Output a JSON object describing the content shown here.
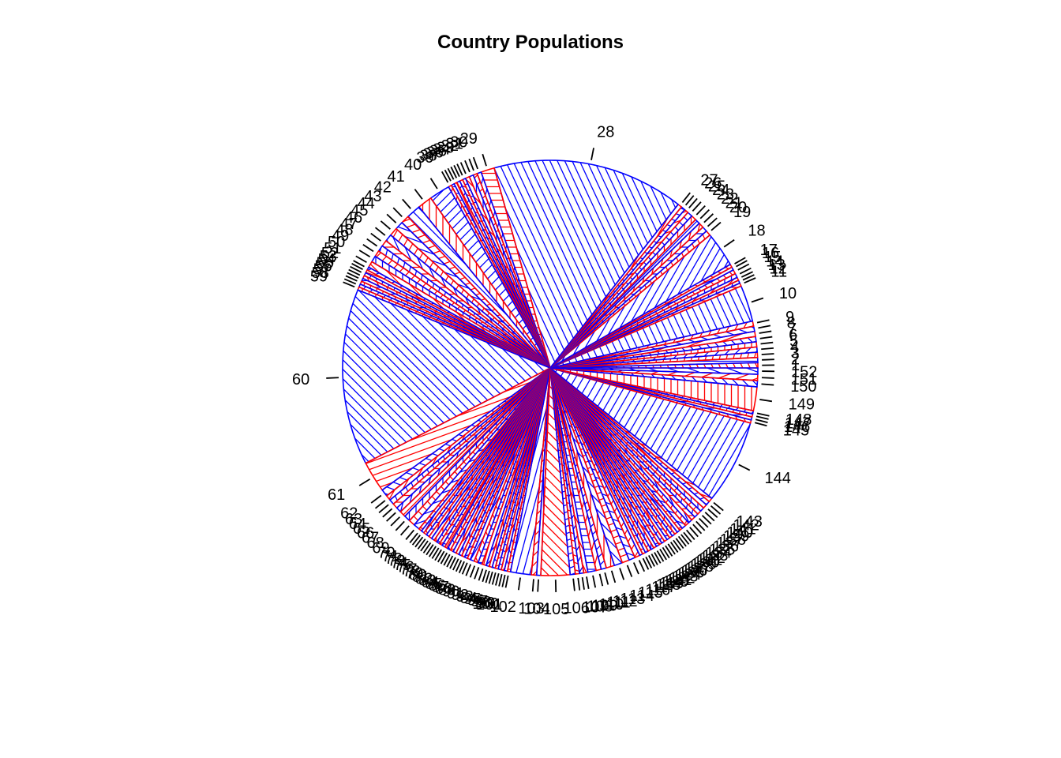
{
  "chart_data": {
    "type": "pie",
    "title": "Country Populations",
    "colors": [
      "#ff0000",
      "#0000ff"
    ],
    "fill_style": "hatched",
    "start": "3 o'clock",
    "direction": "counter-clockwise",
    "slices": [
      {
        "label": "1",
        "value": 0.5
      },
      {
        "label": "2",
        "value": 0.5
      },
      {
        "label": "3",
        "value": 0.5
      },
      {
        "label": "4",
        "value": 0.5
      },
      {
        "label": "5",
        "value": 0.5
      },
      {
        "label": "6",
        "value": 0.5
      },
      {
        "label": "7",
        "value": 0.5
      },
      {
        "label": "8",
        "value": 0.5
      },
      {
        "label": "9",
        "value": 0.5
      },
      {
        "label": "10",
        "value": 3.5
      },
      {
        "label": "11",
        "value": 0.3
      },
      {
        "label": "12",
        "value": 0.3
      },
      {
        "label": "13",
        "value": 0.3
      },
      {
        "label": "14",
        "value": 0.4
      },
      {
        "label": "15",
        "value": 0.4
      },
      {
        "label": "16",
        "value": 0.3
      },
      {
        "label": "17",
        "value": 0.3
      },
      {
        "label": "18",
        "value": 3.4
      },
      {
        "label": "19",
        "value": 0.5
      },
      {
        "label": "20",
        "value": 0.5
      },
      {
        "label": "21",
        "value": 0.5
      },
      {
        "label": "22",
        "value": 0.5
      },
      {
        "label": "23",
        "value": 0.5
      },
      {
        "label": "24",
        "value": 0.5
      },
      {
        "label": "25",
        "value": 0.4
      },
      {
        "label": "26",
        "value": 0.4
      },
      {
        "label": "27",
        "value": 0.4
      },
      {
        "label": "28",
        "value": 18.5
      },
      {
        "label": "29",
        "value": 1.3
      },
      {
        "label": "30",
        "value": 0.4
      },
      {
        "label": "31",
        "value": 0.4
      },
      {
        "label": "32",
        "value": 0.4
      },
      {
        "label": "33",
        "value": 0.4
      },
      {
        "label": "34",
        "value": 0.3
      },
      {
        "label": "35",
        "value": 0.3
      },
      {
        "label": "36",
        "value": 0.3
      },
      {
        "label": "37",
        "value": 0.3
      },
      {
        "label": "38",
        "value": 0.3
      },
      {
        "label": "39",
        "value": 0.3
      },
      {
        "label": "40",
        "value": 2.0
      },
      {
        "label": "41",
        "value": 1.4
      },
      {
        "label": "42",
        "value": 1.4
      },
      {
        "label": "43",
        "value": 0.8
      },
      {
        "label": "44",
        "value": 0.8
      },
      {
        "label": "45",
        "value": 0.8
      },
      {
        "label": "46",
        "value": 0.7
      },
      {
        "label": "47",
        "value": 0.6
      },
      {
        "label": "48",
        "value": 0.6
      },
      {
        "label": "49",
        "value": 0.6
      },
      {
        "label": "50",
        "value": 0.6
      },
      {
        "label": "51",
        "value": 0.6
      },
      {
        "label": "52",
        "value": 0.3
      },
      {
        "label": "53",
        "value": 0.3
      },
      {
        "label": "54",
        "value": 0.3
      },
      {
        "label": "55",
        "value": 0.3
      },
      {
        "label": "56",
        "value": 0.3
      },
      {
        "label": "57",
        "value": 0.3
      },
      {
        "label": "58",
        "value": 0.3
      },
      {
        "label": "59",
        "value": 0.3
      },
      {
        "label": "60",
        "value": 17.0
      },
      {
        "label": "61",
        "value": 3.0
      },
      {
        "label": "62",
        "value": 0.7
      },
      {
        "label": "63",
        "value": 0.5
      },
      {
        "label": "64",
        "value": 0.5
      },
      {
        "label": "65",
        "value": 0.5
      },
      {
        "label": "66",
        "value": 0.5
      },
      {
        "label": "67",
        "value": 0.6
      },
      {
        "label": "68",
        "value": 0.6
      },
      {
        "label": "69",
        "value": 0.6
      },
      {
        "label": "70",
        "value": 0.6
      },
      {
        "label": "71",
        "value": 0.3
      },
      {
        "label": "72",
        "value": 0.3
      },
      {
        "label": "73",
        "value": 0.3
      },
      {
        "label": "74",
        "value": 0.3
      },
      {
        "label": "75",
        "value": 0.3
      },
      {
        "label": "76",
        "value": 0.3
      },
      {
        "label": "77",
        "value": 0.3
      },
      {
        "label": "78",
        "value": 0.3
      },
      {
        "label": "79",
        "value": 0.3
      },
      {
        "label": "80",
        "value": 0.3
      },
      {
        "label": "81",
        "value": 0.3
      },
      {
        "label": "82",
        "value": 0.3
      },
      {
        "label": "83",
        "value": 0.3
      },
      {
        "label": "84",
        "value": 0.3
      },
      {
        "label": "85",
        "value": 0.3
      },
      {
        "label": "86",
        "value": 0.3
      },
      {
        "label": "87",
        "value": 0.3
      },
      {
        "label": "88",
        "value": 0.3
      },
      {
        "label": "89",
        "value": 0.3
      },
      {
        "label": "90",
        "value": 0.4
      },
      {
        "label": "91",
        "value": 0.4
      },
      {
        "label": "92",
        "value": 0.4
      },
      {
        "label": "93",
        "value": 0.4
      },
      {
        "label": "94",
        "value": 0.3
      },
      {
        "label": "95",
        "value": 0.3
      },
      {
        "label": "96",
        "value": 0.3
      },
      {
        "label": "97",
        "value": 0.3
      },
      {
        "label": "98",
        "value": 0.3
      },
      {
        "label": "99",
        "value": 0.3
      },
      {
        "label": "100",
        "value": 0.3
      },
      {
        "label": "101",
        "value": 0.3
      },
      {
        "label": "102",
        "value": 2.0
      },
      {
        "label": "103",
        "value": 0.5
      },
      {
        "label": "104",
        "value": 0.4
      },
      {
        "label": "105",
        "value": 2.8
      },
      {
        "label": "106",
        "value": 0.5
      },
      {
        "label": "107",
        "value": 0.4
      },
      {
        "label": "108",
        "value": 0.4
      },
      {
        "label": "109",
        "value": 0.4
      },
      {
        "label": "110",
        "value": 0.8
      },
      {
        "label": "111",
        "value": 0.5
      },
      {
        "label": "112",
        "value": 0.5
      },
      {
        "label": "113",
        "value": 0.8
      },
      {
        "label": "114",
        "value": 0.8
      },
      {
        "label": "115",
        "value": 0.7
      },
      {
        "label": "116",
        "value": 0.6
      },
      {
        "label": "117",
        "value": 0.5
      },
      {
        "label": "118",
        "value": 0.3
      },
      {
        "label": "119",
        "value": 0.3
      },
      {
        "label": "120",
        "value": 0.3
      },
      {
        "label": "121",
        "value": 0.3
      },
      {
        "label": "122",
        "value": 0.3
      },
      {
        "label": "123",
        "value": 0.3
      },
      {
        "label": "124",
        "value": 0.3
      },
      {
        "label": "125",
        "value": 0.3
      },
      {
        "label": "126",
        "value": 0.3
      },
      {
        "label": "127",
        "value": 0.3
      },
      {
        "label": "128",
        "value": 0.3
      },
      {
        "label": "129",
        "value": 0.3
      },
      {
        "label": "130",
        "value": 0.3
      },
      {
        "label": "131",
        "value": 0.3
      },
      {
        "label": "132",
        "value": 0.3
      },
      {
        "label": "133",
        "value": 0.3
      },
      {
        "label": "134",
        "value": 0.4
      },
      {
        "label": "135",
        "value": 0.4
      },
      {
        "label": "136",
        "value": 0.4
      },
      {
        "label": "137",
        "value": 0.4
      },
      {
        "label": "138",
        "value": 0.4
      },
      {
        "label": "139",
        "value": 0.4
      },
      {
        "label": "140",
        "value": 0.4
      },
      {
        "label": "141",
        "value": 0.4
      },
      {
        "label": "142",
        "value": 0.4
      },
      {
        "label": "143",
        "value": 0.4
      },
      {
        "label": "144",
        "value": 8.1
      },
      {
        "label": "145",
        "value": 0.3
      },
      {
        "label": "146",
        "value": 0.3
      },
      {
        "label": "147",
        "value": 0.3
      },
      {
        "label": "148",
        "value": 0.3
      },
      {
        "label": "149",
        "value": 2.3
      },
      {
        "label": "150",
        "value": 0.6
      },
      {
        "label": "151",
        "value": 0.6
      },
      {
        "label": "152",
        "value": 0.6
      }
    ]
  }
}
